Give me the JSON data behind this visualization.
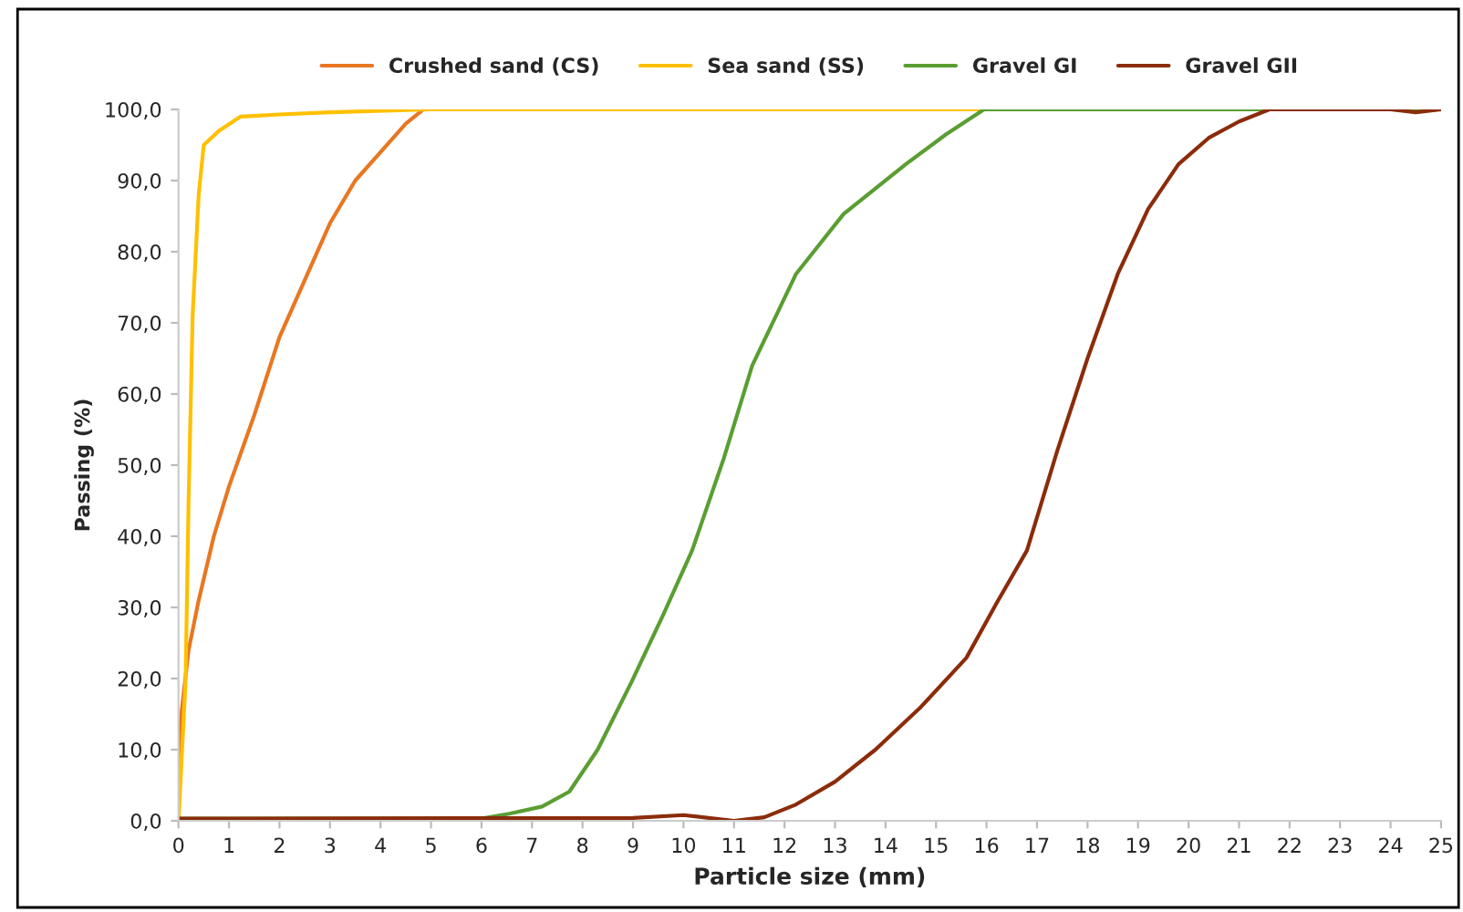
{
  "chart_data": {
    "type": "line",
    "xlabel": "Particle size (mm)",
    "ylabel": "Passing (%)",
    "xlim": [
      0,
      25
    ],
    "xticks": [
      0,
      1,
      2,
      3,
      4,
      5,
      6,
      7,
      8,
      9,
      10,
      11,
      12,
      13,
      14,
      15,
      16,
      17,
      18,
      19,
      20,
      21,
      22,
      23,
      24,
      25
    ],
    "ylim": [
      0,
      100
    ],
    "yticks": [
      {
        "value": 0,
        "label": "0,0"
      },
      {
        "value": 10,
        "label": "10,0"
      },
      {
        "value": 20,
        "label": "20,0"
      },
      {
        "value": 30,
        "label": "30,0"
      },
      {
        "value": 40,
        "label": "40,0"
      },
      {
        "value": 50,
        "label": "50,0"
      },
      {
        "value": 60,
        "label": "60,0"
      },
      {
        "value": 70,
        "label": "70,0"
      },
      {
        "value": 80,
        "label": "80,0"
      },
      {
        "value": 90,
        "label": "90,0"
      },
      {
        "value": 100,
        "label": "100,0"
      }
    ],
    "grid": false,
    "legend": "top",
    "marker": "none",
    "line_style": "solid",
    "series": [
      {
        "name": "Crushed sand (CS)",
        "color": "#e87722",
        "x": [
          0,
          0.04,
          0.2,
          0.4,
          0.7,
          1.0,
          1.5,
          2.0,
          2.5,
          3.0,
          3.5,
          4.0,
          4.5,
          4.85
        ],
        "values": [
          0,
          14,
          24,
          31,
          40,
          47,
          57,
          68,
          76,
          84,
          90,
          94,
          98,
          100
        ]
      },
      {
        "name": "Sea sand (SS)",
        "color": "#ffc000",
        "x": [
          0,
          0.14,
          0.2,
          0.28,
          0.4,
          0.5,
          0.8,
          1.23,
          2,
          3,
          5,
          10,
          15,
          20,
          25
        ],
        "values": [
          0,
          19.5,
          45,
          71,
          88,
          95,
          97,
          99,
          99.3,
          99.6,
          100,
          100,
          100,
          100,
          100
        ]
      },
      {
        "name": "Gravel GI",
        "color": "#5a9e32",
        "x": [
          0,
          6,
          6.55,
          7.2,
          7.74,
          8.3,
          8.97,
          9.6,
          10.17,
          10.8,
          11.36,
          12.23,
          13.17,
          14.4,
          15.2,
          15.95,
          20,
          25
        ],
        "values": [
          0.3,
          0.3,
          1.0,
          2.0,
          4.1,
          10,
          19.5,
          29,
          38,
          51,
          64,
          76.9,
          85.3,
          92.3,
          96.5,
          100,
          100,
          100
        ]
      },
      {
        "name": "Gravel GII",
        "color": "#8b2c0a",
        "x": [
          0,
          9,
          10,
          11,
          11.6,
          12.23,
          13,
          13.8,
          14.7,
          15.6,
          16.2,
          16.8,
          17.4,
          18,
          18.6,
          19.2,
          19.8,
          20.4,
          21.0,
          21.6,
          24,
          24.5,
          25
        ],
        "values": [
          0.3,
          0.4,
          0.8,
          0,
          0.5,
          2.3,
          5.5,
          10,
          16,
          22.9,
          30.6,
          38,
          52,
          65,
          76.9,
          86,
          92.3,
          96,
          98.3,
          100,
          100,
          99.6,
          100
        ]
      }
    ]
  }
}
